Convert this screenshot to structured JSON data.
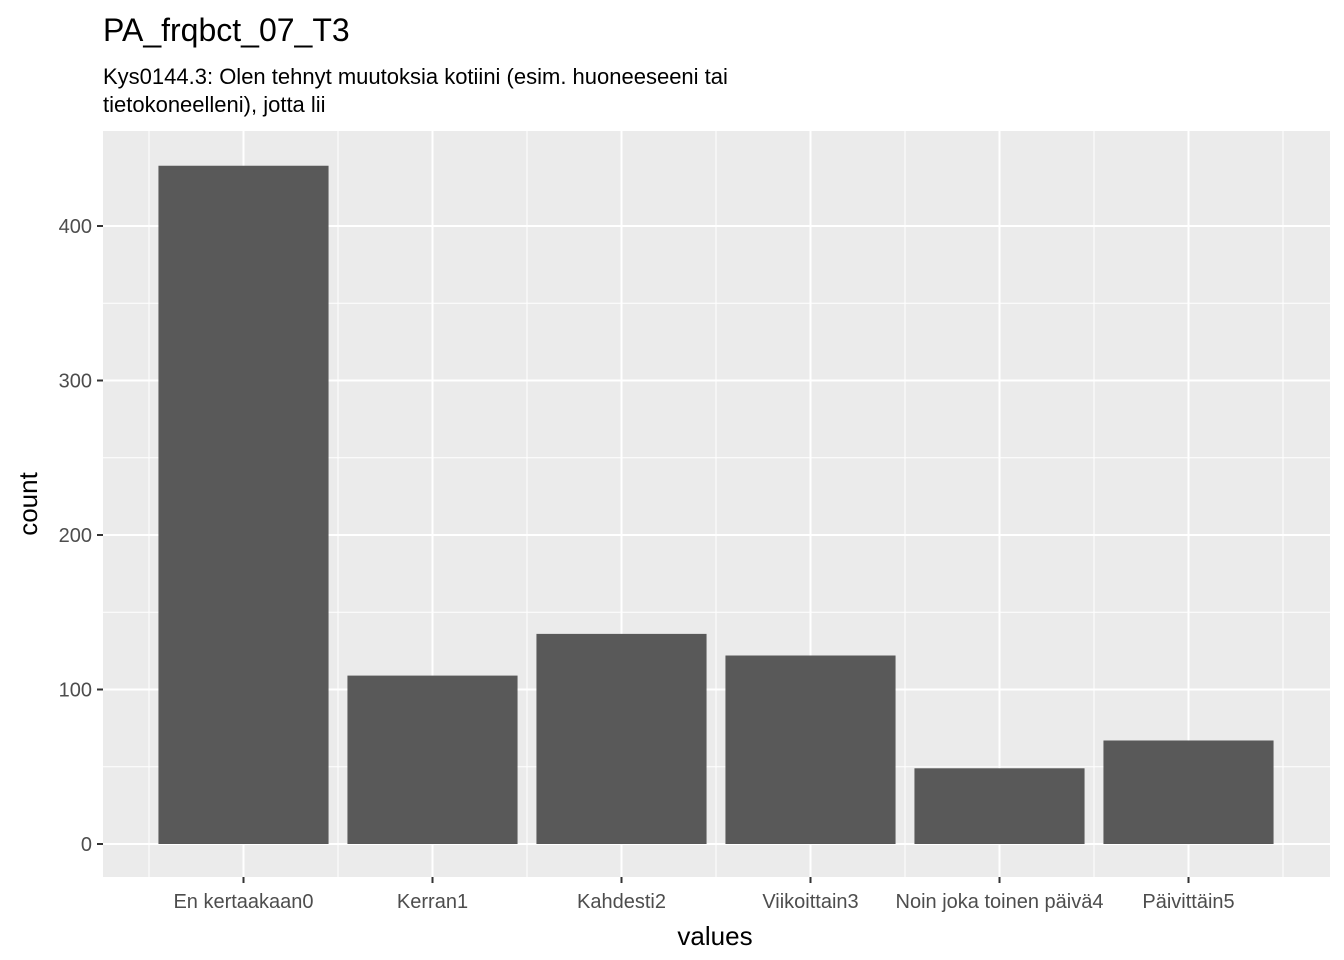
{
  "chart_data": {
    "type": "bar",
    "title": "PA_frqbct_07_T3",
    "subtitle_lines": [
      "Kys0144.3: Olen tehnyt muutoksia kotiini (esim. huoneeseeni tai",
      "tietokoneelleni), jotta lii"
    ],
    "xlabel": "values",
    "ylabel": "count",
    "categories": [
      "En kertaakaan0",
      "Kerran1",
      "Kahdesti2",
      "Viikoittain3",
      "Noin joka toinen päivä4",
      "Päivittäin5"
    ],
    "values": [
      439,
      109,
      136,
      122,
      49,
      67
    ],
    "ylim": [
      0,
      460
    ],
    "yticks": [
      0,
      100,
      200,
      300,
      400
    ],
    "grid": true,
    "colors": {
      "panel_background": "#ebebeb",
      "grid_major": "#ffffff",
      "bar_fill": "#595959"
    }
  }
}
